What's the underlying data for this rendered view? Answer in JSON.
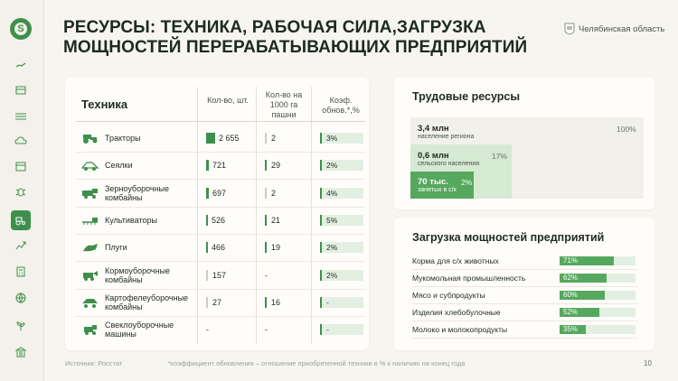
{
  "header": {
    "title": "РЕСУРСЫ: ТЕХНИКА, РАБОЧАЯ СИЛА,ЗАГРУЗКА МОЩНОСТЕЙ ПЕРЕРАБАТЫВАЮЩИХ ПРЕДПРИЯТИЙ",
    "region": "Челябинская область"
  },
  "sidebar": {
    "icons": [
      "home-icon",
      "documents-icon",
      "field-icon",
      "weather-icon",
      "calendar-icon",
      "bug-icon",
      "tractor-icon",
      "growth-icon",
      "calculator-icon",
      "globe-icon",
      "plant-icon",
      "bank-icon"
    ],
    "active": "tractor-icon",
    "accent": "#3f8f4c"
  },
  "tech": {
    "title": "Техника",
    "columns": [
      "Кол-во, шт.",
      "Кол-во на 1000 га пашни",
      "Коэф. обнов.*,%"
    ],
    "rows": [
      {
        "name": "Тракторы",
        "count": "2 655",
        "count_level": 1.0,
        "per1000": "2",
        "renew": "3%"
      },
      {
        "name": "Сеялки",
        "count": "721",
        "count_level": 0.27,
        "per1000": "29",
        "renew": "2%"
      },
      {
        "name": "Зерноуборочные комбайны",
        "count": "697",
        "count_level": 0.26,
        "per1000": "2",
        "renew": "4%"
      },
      {
        "name": "Культиваторы",
        "count": "526",
        "count_level": 0.2,
        "per1000": "21",
        "renew": "5%"
      },
      {
        "name": "Плуги",
        "count": "466",
        "count_level": 0.18,
        "per1000": "19",
        "renew": "2%"
      },
      {
        "name": "Кормоуборочные комбайны",
        "count": "157",
        "count_level": 0,
        "per1000": "-",
        "renew": "2%"
      },
      {
        "name": "Картофелеуборочные комбайны",
        "count": "27",
        "count_level": 0,
        "per1000": "16",
        "renew": "-"
      },
      {
        "name": "Свеклоуборочные машины",
        "count": "-",
        "count_level": 0,
        "per1000": "-",
        "renew": "-"
      }
    ]
  },
  "labor": {
    "title": "Трудовые ресурсы",
    "total": {
      "value": "3,4 млн",
      "label": "население региона",
      "pct": "100%"
    },
    "rural": {
      "value": "0,6 млн",
      "label": "сельского населения",
      "pct": "17%"
    },
    "employed": {
      "value": "70 тыс.",
      "label": "занятых в с/х",
      "pct": "2%"
    }
  },
  "load": {
    "title": "Загрузка мощностей предприятий",
    "items": [
      {
        "label": "Корма для с/х животных",
        "pct_text": "71%",
        "value": 71
      },
      {
        "label": "Мукомольная промышленность",
        "pct_text": "62%",
        "value": 62
      },
      {
        "label": "Мясо и субпродукты",
        "pct_text": "60%",
        "value": 60
      },
      {
        "label": "Изделия хлебобулочные",
        "pct_text": "52%",
        "value": 52
      },
      {
        "label": "Молоко и молокопродукты",
        "pct_text": "35%",
        "value": 35
      }
    ]
  },
  "footer": {
    "source": "Источник: Росстат",
    "note": "*коэффициент обновления – отношение приобретенной техники в % к наличию на конец года",
    "page": "10"
  }
}
